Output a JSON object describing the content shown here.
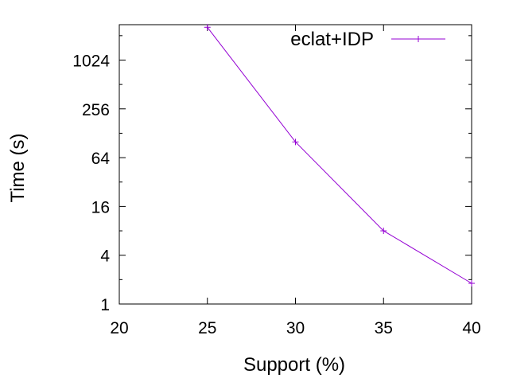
{
  "chart_data": {
    "type": "line",
    "title": "",
    "xlabel": "Support (%)",
    "ylabel": "Time (s)",
    "xlim": [
      20,
      40
    ],
    "ylim": [
      1,
      2800
    ],
    "yscale": "log2",
    "xticks": [
      20,
      25,
      30,
      35,
      40
    ],
    "xtick_labels": [
      "20",
      "25",
      "30",
      "35",
      "40"
    ],
    "yticks": [
      1,
      4,
      16,
      64,
      256,
      1024
    ],
    "ytick_labels": [
      "1",
      "4",
      "16",
      "64",
      "256",
      "1024"
    ],
    "grid": false,
    "legend_position": "top-right",
    "series": [
      {
        "name": "eclat+IDP",
        "color": "#9400d3",
        "marker": "plus",
        "x": [
          25,
          30,
          35,
          40
        ],
        "y": [
          2600,
          100,
          8,
          1.8
        ]
      }
    ]
  }
}
